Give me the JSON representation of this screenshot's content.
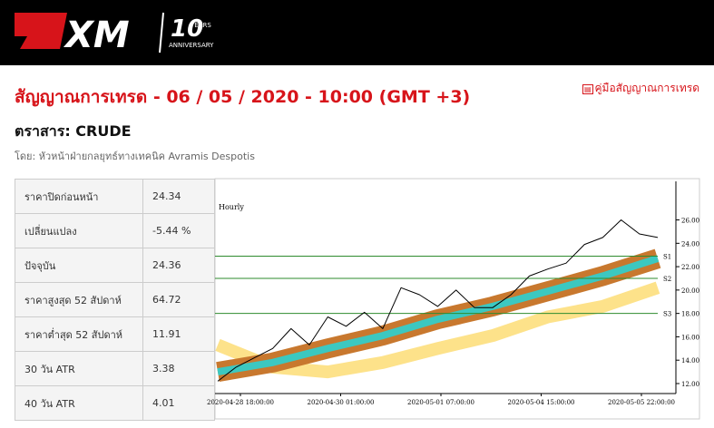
{
  "header": {
    "logo": "XM",
    "anniversary": "10",
    "years": "YEARS",
    "anniversary_text": "ANNIVERSARY"
  },
  "title": "สัญญาณการเทรด - 06 / 05 / 2020 - 10:00 (GMT +3)",
  "guide_link": "คู่มือสัญญาณการเทรด",
  "instrument": "ตราสาร: CRUDE",
  "author": "โดย: หัวหน้าฝ่ายกลยุทธ์ทางเทคนิค Avramis Despotis",
  "table": {
    "rows": [
      [
        "ราคาปิดก่อนหน้า",
        "24.34"
      ],
      [
        "เปลี่ยนแปลง",
        "-5.44 %"
      ],
      [
        "ปัจจุบัน",
        "24.36"
      ],
      [
        "ราคาสูงสุด 52 สัปดาห์",
        "64.72"
      ],
      [
        "ราคาต่ำสุด 52 สัปดาห์",
        "11.91"
      ],
      [
        "30 วัน ATR",
        "3.38"
      ],
      [
        "40 วัน ATR",
        "4.01"
      ]
    ]
  },
  "chart": {
    "title": "Hourly",
    "ylim": [
      11.3,
      29.3
    ],
    "yticks": [
      {
        "value": 12,
        "label": "12.00"
      },
      {
        "value": 14,
        "label": "14.00"
      },
      {
        "value": 16,
        "label": "16.00"
      },
      {
        "value": 18,
        "label": "18.00"
      },
      {
        "value": 20,
        "label": "20.00"
      },
      {
        "value": 22,
        "label": "22.00"
      },
      {
        "value": 24,
        "label": "24.00"
      },
      {
        "value": 26,
        "label": "26.00"
      }
    ],
    "xticks": [
      "2020-04-28 18:00:00",
      "2020-04-30 01:00:00",
      "2020-05-01 07:00:00",
      "2020-05-04 15:00:00",
      "2020-05-05 22:00:00"
    ],
    "levels": [
      {
        "name": "S1",
        "value": 22.9,
        "color": "#2e8b2e"
      },
      {
        "name": "S2",
        "value": 21.0,
        "color": "#2e8b2e"
      },
      {
        "name": "S3",
        "value": 18.0,
        "color": "#2e8b2e"
      }
    ],
    "bands": [
      {
        "color": "#fde28a",
        "values": [
          15.3,
          13.4,
          13.0,
          13.8,
          15.0,
          16.1,
          17.7,
          18.6,
          20.2
        ]
      },
      {
        "color": "#c8782e",
        "values": [
          13.0,
          13.8,
          15.0,
          16.1,
          17.5,
          18.6,
          19.9,
          21.2,
          22.7
        ]
      },
      {
        "color": "#3cc8c0",
        "values": [
          13.0,
          13.8,
          15.0,
          16.1,
          17.5,
          18.6,
          19.9,
          21.2,
          22.7
        ]
      }
    ],
    "price": {
      "color": "#000000",
      "values": [
        12.2,
        13.4,
        14.2,
        15.0,
        16.7,
        15.3,
        17.7,
        16.9,
        18.1,
        16.7,
        20.2,
        19.6,
        18.6,
        20.0,
        18.5,
        18.5,
        19.6,
        21.2,
        21.8,
        22.3,
        23.9,
        24.5,
        26.0,
        24.8,
        24.5
      ]
    }
  }
}
